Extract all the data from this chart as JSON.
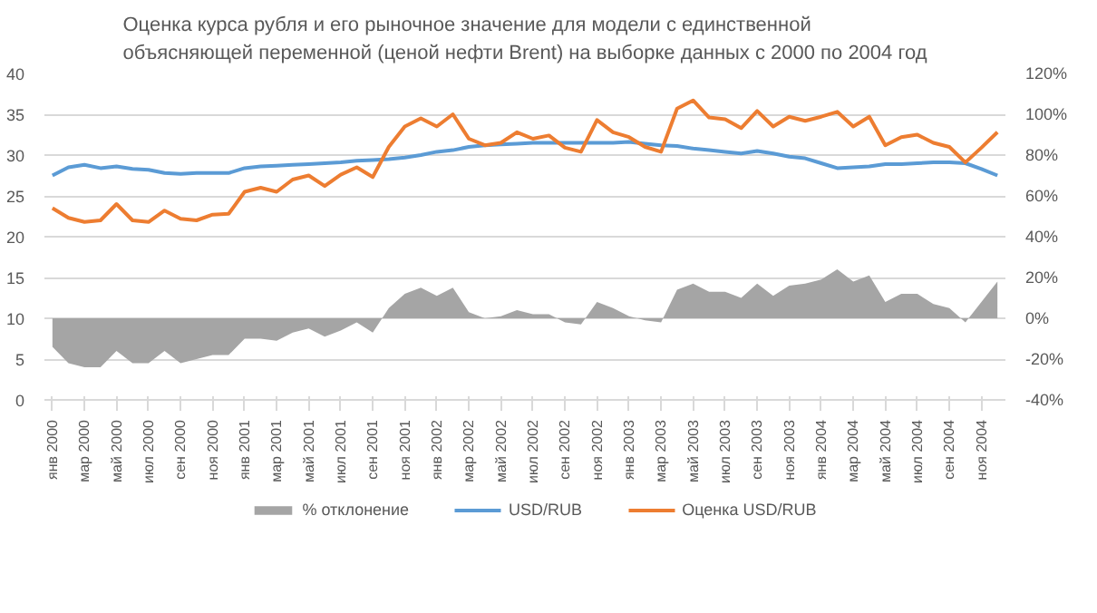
{
  "chart_data": {
    "type": "line",
    "title": "Оценка курса рубля и его рыночное значение для модели с единственной объясняющей переменной (ценой нефти Brent) на выборке данных с 2000 по 2004 год",
    "categories": [
      "янв 2000",
      null,
      "мар 2000",
      null,
      "май 2000",
      null,
      "июл 2000",
      null,
      "сен 2000",
      null,
      "ноя 2000",
      null,
      "янв 2001",
      null,
      "мар 2001",
      null,
      "май 2001",
      null,
      "июл 2001",
      null,
      "сен 2001",
      null,
      "ноя 2001",
      null,
      "янв 2002",
      null,
      "мар 2002",
      null,
      "май 2002",
      null,
      "июл 2002",
      null,
      "сен 2002",
      null,
      "ноя 2002",
      null,
      "янв 2003",
      null,
      "мар 2003",
      null,
      "май 2003",
      null,
      "июл 2003",
      null,
      "сен 2003",
      null,
      "ноя 2003",
      null,
      "янв 2004",
      null,
      "мар 2004",
      null,
      "май 2004",
      null,
      "июл 2004",
      null,
      "сен 2004",
      null,
      "ноя 2004",
      null
    ],
    "series": [
      {
        "name": "% отклонение",
        "type": "area",
        "axis": "y2",
        "color": "#a5a5a5",
        "values": [
          -14,
          -22,
          -24,
          -24,
          -16,
          -22,
          -22,
          -16,
          -22,
          -20,
          -18,
          -18,
          -10,
          -10,
          -11,
          -7,
          -5,
          -9,
          -6,
          -2,
          -7,
          5,
          12,
          15,
          11,
          15,
          3,
          0,
          1,
          4,
          2,
          2,
          -2,
          -3,
          8,
          5,
          1,
          -1,
          -2,
          14,
          17,
          13,
          13,
          10,
          17,
          11,
          16,
          17,
          19,
          24,
          18,
          21,
          8,
          12,
          12,
          7,
          5,
          -2,
          8,
          18
        ]
      },
      {
        "name": "USD/RUB",
        "color": "#5b9bd5",
        "values": [
          27.5,
          28.5,
          28.8,
          28.4,
          28.6,
          28.3,
          28.2,
          27.8,
          27.7,
          27.8,
          27.8,
          27.8,
          28.4,
          28.6,
          28.7,
          28.8,
          28.9,
          29.0,
          29.1,
          29.3,
          29.4,
          29.5,
          29.7,
          30.0,
          30.4,
          30.6,
          31.0,
          31.2,
          31.3,
          31.4,
          31.5,
          31.5,
          31.5,
          31.5,
          31.5,
          31.5,
          31.6,
          31.4,
          31.2,
          31.1,
          30.8,
          30.6,
          30.4,
          30.2,
          30.5,
          30.2,
          29.8,
          29.6,
          29.0,
          28.4,
          28.5,
          28.6,
          28.9,
          28.9,
          29.0,
          29.1,
          29.1,
          29.0,
          28.3,
          27.5
        ]
      },
      {
        "name": "Оценка USD/RUB",
        "color": "#ed7d31",
        "values": [
          23.5,
          22.3,
          21.8,
          22.0,
          24.0,
          22.0,
          21.8,
          23.2,
          22.2,
          22.0,
          22.7,
          22.8,
          25.5,
          26.0,
          25.5,
          27.0,
          27.5,
          26.2,
          27.6,
          28.5,
          27.3,
          31.0,
          33.5,
          34.5,
          33.5,
          35.0,
          32.0,
          31.2,
          31.5,
          32.8,
          32.0,
          32.4,
          30.9,
          30.4,
          34.3,
          32.8,
          32.2,
          31.0,
          30.4,
          35.7,
          36.7,
          34.6,
          34.4,
          33.3,
          35.4,
          33.5,
          34.7,
          34.2,
          34.7,
          35.3,
          33.5,
          34.7,
          31.2,
          32.2,
          32.5,
          31.5,
          31.0,
          29.1,
          30.9,
          32.8
        ]
      }
    ],
    "ylim": [
      0,
      40
    ],
    "yticks": [
      0,
      5,
      10,
      15,
      20,
      25,
      30,
      35,
      40
    ],
    "y2lim": [
      -40,
      120
    ],
    "y2ticks": [
      {
        "value": -40,
        "label": "-40%"
      },
      {
        "value": -20,
        "label": "-20%"
      },
      {
        "value": 0,
        "label": "0%"
      },
      {
        "value": 20,
        "label": "20%"
      },
      {
        "value": 40,
        "label": "40%"
      },
      {
        "value": 60,
        "label": "60%"
      },
      {
        "value": 80,
        "label": "80%"
      },
      {
        "value": 100,
        "label": "100%"
      },
      {
        "value": 120,
        "label": "120%"
      }
    ],
    "grid": "y",
    "legend": "bottom"
  }
}
